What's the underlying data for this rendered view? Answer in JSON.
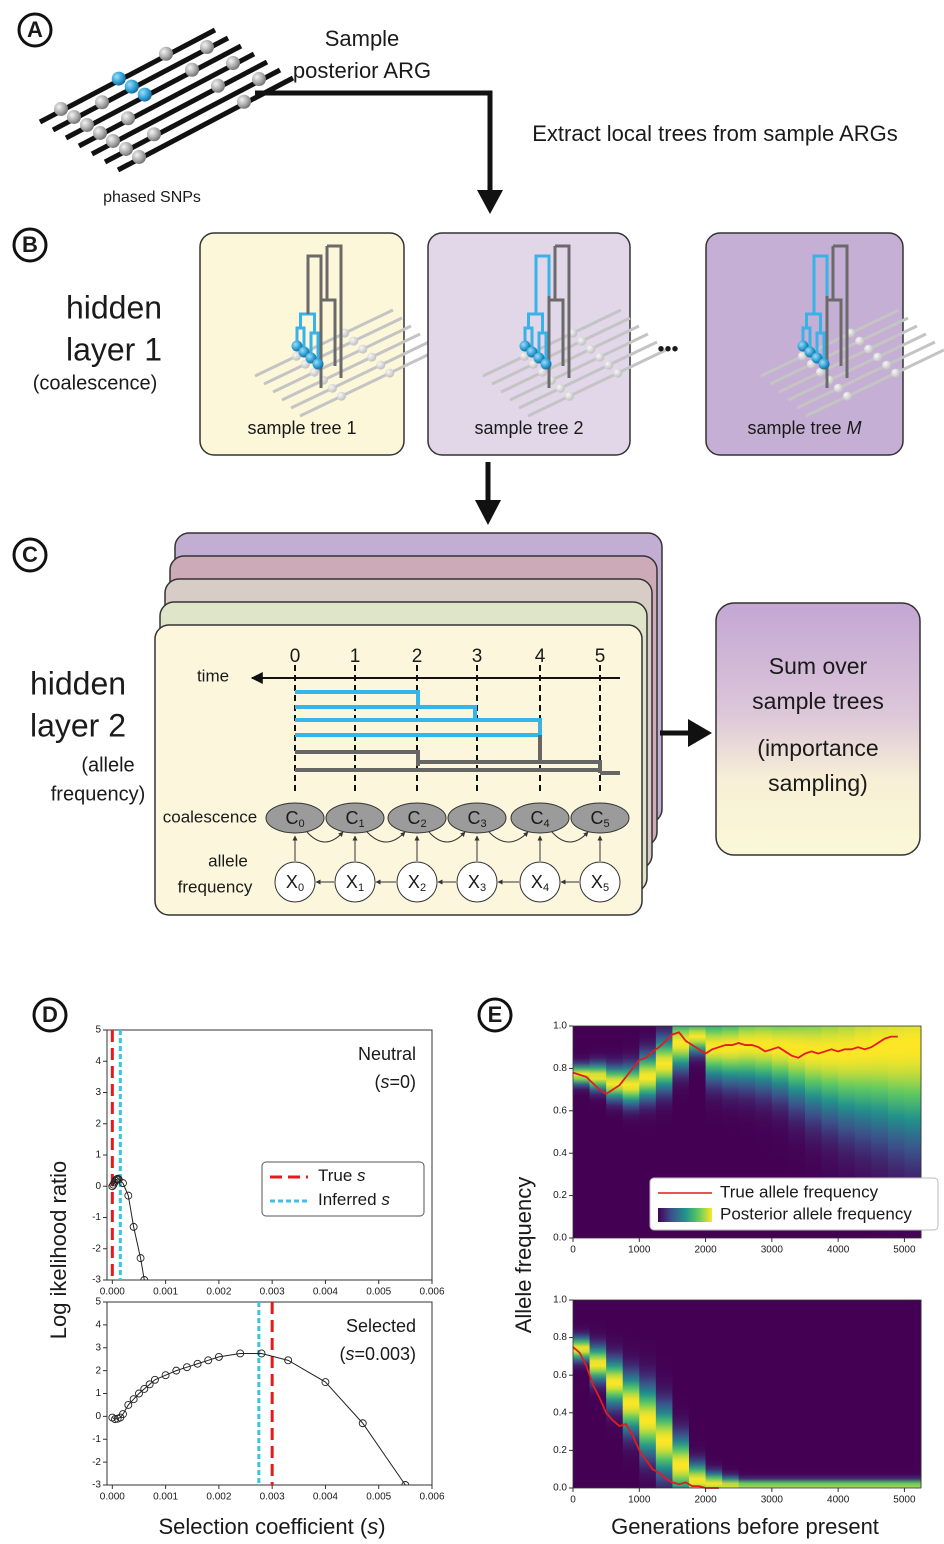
{
  "panel_labels": [
    "A",
    "B",
    "C",
    "D",
    "E"
  ],
  "panel_a": {
    "arrow_label": [
      "Sample",
      "posterior ARG"
    ],
    "extract_label": "Extract local trees from sample ARGs",
    "snp_label": "phased SNPs"
  },
  "panel_b": {
    "layer_title": [
      "hidden",
      "layer  1",
      "(coalescence)"
    ],
    "trees": [
      {
        "text": "sample tree 1"
      },
      {
        "text": "sample tree 2"
      },
      {
        "text": "sample tree ",
        "italic": "M"
      }
    ],
    "ellipsis": "•••"
  },
  "panel_c": {
    "layer_title": [
      "hidden",
      "layer  2",
      "(allele",
      "frequency)"
    ],
    "time_label": "time",
    "time_points": [
      "0",
      "1",
      "2",
      "3",
      "4",
      "5"
    ],
    "coalescence_label": "coalescence",
    "allele_label": [
      "allele",
      "frequency"
    ],
    "c_nodes": [
      {
        "symbol": "C",
        "subscript": "0"
      },
      {
        "symbol": "C",
        "subscript": "1"
      },
      {
        "symbol": "C",
        "subscript": "2"
      },
      {
        "symbol": "C",
        "subscript": "3"
      },
      {
        "symbol": "C",
        "subscript": "4"
      },
      {
        "symbol": "C",
        "subscript": "5"
      }
    ],
    "x_nodes": [
      {
        "symbol": "X",
        "subscript": "0"
      },
      {
        "symbol": "X",
        "subscript": "1"
      },
      {
        "symbol": "X",
        "subscript": "2"
      },
      {
        "symbol": "X",
        "subscript": "3"
      },
      {
        "symbol": "X",
        "subscript": "4"
      },
      {
        "symbol": "X",
        "subscript": "5"
      }
    ],
    "sum_box": [
      "Sum over",
      "sample trees",
      "(importance",
      "sampling)"
    ]
  },
  "chart_data": [
    {
      "type": "line",
      "ylabel": "Log ikelihood ratio",
      "annotation": "Neutral",
      "subtitle": [
        {
          "text": "("
        },
        {
          "text": "s",
          "italic": true
        },
        {
          "text": "=0)"
        }
      ],
      "x": [
        0,
        2e-05,
        4e-05,
        6e-05,
        8e-05,
        0.0001,
        0.00012,
        0.0002,
        0.0003,
        0.0004,
        0.00053,
        0.0006
      ],
      "values": [
        0,
        0.05,
        0.12,
        0.18,
        0.22,
        0.24,
        0.22,
        0.1,
        -0.3,
        -1.3,
        -2.3,
        -3.0
      ],
      "color": "#222222",
      "reference_lines": [
        {
          "name": "True ",
          "name_italic": "s",
          "value": 0,
          "color": "#e41a1c",
          "dash": "12 6"
        },
        {
          "name": "Inferred ",
          "name_italic": "s",
          "value": 0.00015,
          "color": "#3fc1e3",
          "dash": "5 3"
        }
      ],
      "xlim": [
        -0.0001,
        0.006
      ],
      "ylim": [
        -3,
        5
      ],
      "xticks": [
        {
          "value": 0,
          "label": "0.000"
        },
        {
          "value": 0.001,
          "label": "0.001"
        },
        {
          "value": 0.002,
          "label": "0.002"
        },
        {
          "value": 0.003,
          "label": "0.003"
        },
        {
          "value": 0.004,
          "label": "0.004"
        },
        {
          "value": 0.005,
          "label": "0.005"
        },
        {
          "value": 0.006,
          "label": "0.006"
        }
      ],
      "yticks": [
        -3,
        -2,
        -1,
        0,
        1,
        2,
        3,
        4,
        5
      ],
      "legend": "lower right"
    },
    {
      "type": "line",
      "xlabel": [
        {
          "text": "Selection coefficient ("
        },
        {
          "text": "s",
          "italic": true
        },
        {
          "text": ")"
        }
      ],
      "annotation": "Selected",
      "subtitle": [
        {
          "text": "("
        },
        {
          "text": "s",
          "italic": true
        },
        {
          "text": "=0.003)"
        }
      ],
      "x": [
        0,
        5e-05,
        0.0001,
        0.00015,
        0.0002,
        0.0003,
        0.0004,
        0.0005,
        0.0006,
        0.0007,
        0.0008,
        0.001,
        0.0012,
        0.0014,
        0.0016,
        0.0018,
        0.002,
        0.0024,
        0.0028,
        0.0033,
        0.004,
        0.0047,
        0.0055
      ],
      "values": [
        -0.05,
        -0.12,
        -0.1,
        -0.05,
        0.1,
        0.5,
        0.75,
        1.0,
        1.2,
        1.4,
        1.6,
        1.8,
        2.0,
        2.15,
        2.3,
        2.45,
        2.6,
        2.75,
        2.75,
        2.45,
        1.5,
        -0.3,
        -3.0
      ],
      "color": "#222222",
      "reference_lines": [
        {
          "value": 0.003,
          "color": "#e41a1c",
          "dash": "12 6"
        },
        {
          "value": 0.00275,
          "color": "#3fc1e3",
          "dash": "5 3"
        }
      ],
      "xlim": [
        -0.0001,
        0.006
      ],
      "ylim": [
        -3,
        5
      ],
      "xticks": [
        {
          "value": 0,
          "label": "0.000"
        },
        {
          "value": 0.001,
          "label": "0.001"
        },
        {
          "value": 0.002,
          "label": "0.002"
        },
        {
          "value": 0.003,
          "label": "0.003"
        },
        {
          "value": 0.004,
          "label": "0.004"
        },
        {
          "value": 0.005,
          "label": "0.005"
        },
        {
          "value": 0.006,
          "label": "0.006"
        }
      ],
      "yticks": [
        -3,
        -2,
        -1,
        0,
        1,
        2,
        3,
        4,
        5
      ]
    },
    {
      "type": "heatmap",
      "ylabel": "Allele frequency",
      "x": [
        0,
        100,
        200,
        300,
        400,
        500,
        600,
        700,
        800,
        900,
        1000,
        1100,
        1200,
        1300,
        1400,
        1500,
        1600,
        1700,
        1800,
        1900,
        2000,
        2100,
        2200,
        2300,
        2400,
        2500,
        2600,
        2700,
        2800,
        2900,
        3000,
        3100,
        3200,
        3300,
        3400,
        3500,
        3600,
        3700,
        3800,
        3900,
        4000,
        4100,
        4200,
        4300,
        4400,
        4500,
        4600,
        4700,
        4800,
        4900
      ],
      "series": [
        {
          "name": "True allele frequency",
          "color": "#e41a1c",
          "values": [
            0.78,
            0.77,
            0.76,
            0.73,
            0.7,
            0.68,
            0.7,
            0.72,
            0.76,
            0.8,
            0.84,
            0.85,
            0.88,
            0.9,
            0.93,
            0.96,
            0.97,
            0.93,
            0.91,
            0.89,
            0.87,
            0.89,
            0.9,
            0.91,
            0.91,
            0.92,
            0.91,
            0.91,
            0.9,
            0.88,
            0.89,
            0.9,
            0.88,
            0.86,
            0.85,
            0.87,
            0.88,
            0.87,
            0.88,
            0.89,
            0.88,
            0.89,
            0.89,
            0.9,
            0.89,
            0.9,
            0.92,
            0.94,
            0.95,
            0.95
          ]
        }
      ],
      "heatmap": {
        "name": "Posterior allele frequency",
        "bins": [
          0,
          250,
          500,
          750,
          1000,
          1250,
          1500,
          1750,
          2000,
          2250,
          2500,
          2750,
          3000,
          3250,
          3500,
          3750,
          4000,
          4250,
          4500,
          4750,
          5000,
          5250
        ],
        "mode": [
          0.77,
          0.76,
          0.73,
          0.72,
          0.76,
          0.82,
          0.92,
          0.95,
          0.9,
          0.9,
          0.91,
          0.91,
          0.9,
          0.89,
          0.88,
          0.88,
          0.88,
          0.89,
          0.9,
          0.9,
          0.91
        ],
        "spread": [
          0.03,
          0.04,
          0.05,
          0.06,
          0.07,
          0.08,
          0.08,
          0.05,
          0.1,
          0.11,
          0.12,
          0.13,
          0.14,
          0.16,
          0.18,
          0.2,
          0.22,
          0.24,
          0.26,
          0.28,
          0.3
        ]
      },
      "colormap": [
        "#440154",
        "#3b528b",
        "#21918c",
        "#5ec962",
        "#fde725"
      ],
      "xlim": [
        0,
        5250
      ],
      "ylim": [
        0,
        1
      ],
      "xticks": [
        0,
        1000,
        2000,
        3000,
        4000,
        5000
      ],
      "yticks": [
        {
          "value": 0,
          "label": "0.0"
        },
        {
          "value": 0.2,
          "label": "0.2"
        },
        {
          "value": 0.4,
          "label": "0.4"
        },
        {
          "value": 0.6,
          "label": "0.6"
        },
        {
          "value": 0.8,
          "label": "0.8"
        },
        {
          "value": 1,
          "label": "1.0"
        }
      ],
      "legend": "lower right"
    },
    {
      "type": "heatmap",
      "xlabel": "Generations before present",
      "x": [
        0,
        100,
        200,
        300,
        400,
        500,
        600,
        700,
        800,
        900,
        1000,
        1100,
        1200,
        1300,
        1400,
        1500,
        1600,
        1700,
        1800,
        1900,
        2000,
        2100,
        2200
      ],
      "series": [
        {
          "color": "#e41a1c",
          "values": [
            0.75,
            0.72,
            0.65,
            0.55,
            0.48,
            0.4,
            0.36,
            0.33,
            0.34,
            0.28,
            0.2,
            0.15,
            0.1,
            0.08,
            0.05,
            0.03,
            0.02,
            0.03,
            0.01,
            0.01,
            0.0,
            0.0,
            0.0
          ]
        }
      ],
      "heatmap": {
        "bins": [
          0,
          250,
          500,
          750,
          1000,
          1250,
          1500,
          1750,
          2000,
          2250,
          2500,
          2750,
          3000,
          3250,
          3500,
          3750,
          4000,
          4250,
          4500,
          4750,
          5000,
          5250
        ],
        "mode": [
          0.74,
          0.66,
          0.56,
          0.45,
          0.36,
          0.25,
          0.12,
          0.04,
          0.02,
          0.01,
          0.01,
          0.01,
          0.01,
          0.01,
          0.01,
          0.01,
          0.01,
          0.01,
          0.01,
          0.01,
          0.01
        ],
        "spread": [
          0.04,
          0.06,
          0.08,
          0.1,
          0.12,
          0.12,
          0.1,
          0.06,
          0.04,
          0.03,
          0.02,
          0.02,
          0.02,
          0.02,
          0.02,
          0.02,
          0.02,
          0.02,
          0.02,
          0.02,
          0.02
        ]
      },
      "colormap": [
        "#440154",
        "#3b528b",
        "#21918c",
        "#5ec962",
        "#fde725"
      ],
      "xlim": [
        0,
        5250
      ],
      "ylim": [
        0,
        1
      ],
      "xticks": [
        0,
        1000,
        2000,
        3000,
        4000,
        5000
      ],
      "yticks": [
        {
          "value": 0,
          "label": "0.0"
        },
        {
          "value": 0.2,
          "label": "0.2"
        },
        {
          "value": 0.4,
          "label": "0.4"
        },
        {
          "value": 0.6,
          "label": "0.6"
        },
        {
          "value": 0.8,
          "label": "0.8"
        },
        {
          "value": 1,
          "label": "1.0"
        }
      ]
    }
  ]
}
